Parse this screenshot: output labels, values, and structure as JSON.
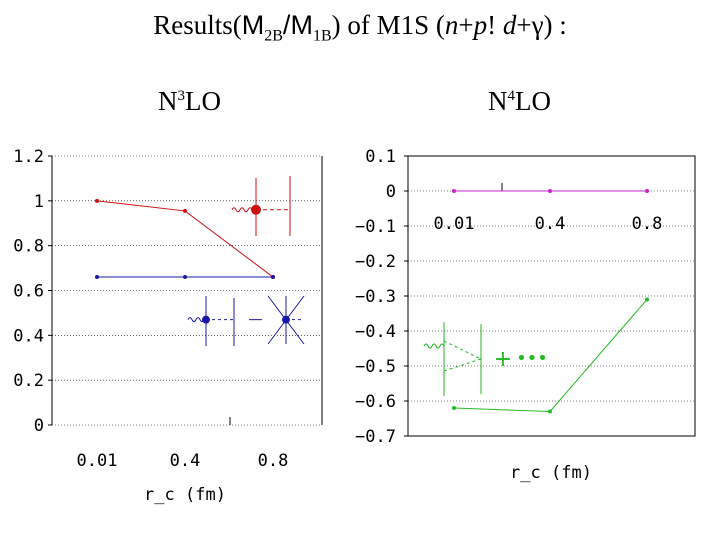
{
  "title": {
    "prefix": "Results(",
    "num_base": "M",
    "num_sub": "2B",
    "slash": "/",
    "den_base": "M",
    "den_sub": "1B",
    "suffix_a": ") of M1S (",
    "n": "n",
    "plus_p": "+",
    "p": "p",
    "bang_d": "! ",
    "d": "d",
    "plus_gamma": "+γ",
    "suffix_b": ") :"
  },
  "panels": [
    {
      "label_base": "N",
      "label_sup": "3",
      "label_rest": "LO"
    },
    {
      "label_base": "N",
      "label_sup": "4",
      "label_rest": "LO"
    }
  ],
  "colors": {
    "red": "#cc1111",
    "blue": "#1a1aa8",
    "magenta": "#cc22cc",
    "green": "#22bb22",
    "axis": "#000000"
  },
  "chart_data": [
    {
      "type": "line",
      "panel": "N3LO",
      "categories": [
        "0.01",
        "0.4",
        "0.8"
      ],
      "xlabel": "r_c (fm)",
      "ylabel": "",
      "ylim": [
        0,
        1.2
      ],
      "yticks": [
        "0",
        "0.2",
        "0.4",
        "0.6",
        "0.8",
        "1",
        "1.2"
      ],
      "yticks_values": [
        0,
        0.2,
        0.4,
        0.6,
        0.8,
        1.0,
        1.2
      ],
      "series": [
        {
          "name": "red",
          "color": "red",
          "values": [
            1.0,
            0.955,
            0.66
          ]
        },
        {
          "name": "blue",
          "color": "blue",
          "values": [
            0.66,
            0.66,
            0.66
          ]
        }
      ],
      "legend_diagrams": [
        {
          "color": "red",
          "y": 0.96,
          "note": "wavy photon line attached to a large red vertex with vertical and dashed lines"
        },
        {
          "color": "blue",
          "y": 0.47,
          "note": "blue vertex diagrams (dashed pion exchange)"
        }
      ]
    },
    {
      "type": "line",
      "panel": "N4LO",
      "categories": [
        "0.01",
        "0.4",
        "0.8"
      ],
      "xlabel": "r_c (fm)",
      "ylabel": "",
      "ylim": [
        -0.7,
        0.1
      ],
      "yticks": [
        "0.1",
        "0",
        "−0.1",
        "−0.2",
        "−0.3",
        "−0.4",
        "−0.5",
        "−0.6",
        "−0.7"
      ],
      "yticks_values": [
        0.1,
        0,
        -0.1,
        -0.2,
        -0.3,
        -0.4,
        -0.5,
        -0.6,
        -0.7
      ],
      "series": [
        {
          "name": "magenta",
          "color": "magenta",
          "values": [
            0.0,
            0.0,
            0.0
          ]
        },
        {
          "name": "green",
          "color": "green",
          "values": [
            -0.62,
            -0.63,
            -0.31
          ]
        }
      ],
      "legend_diagrams": [
        {
          "color": "green",
          "y": -0.48,
          "note": "green diagram with wavy photon line, dashed pion lines, followed by a '+' and dots"
        }
      ],
      "legend_text": {
        "plus": "+",
        "dots": "•••"
      }
    }
  ]
}
